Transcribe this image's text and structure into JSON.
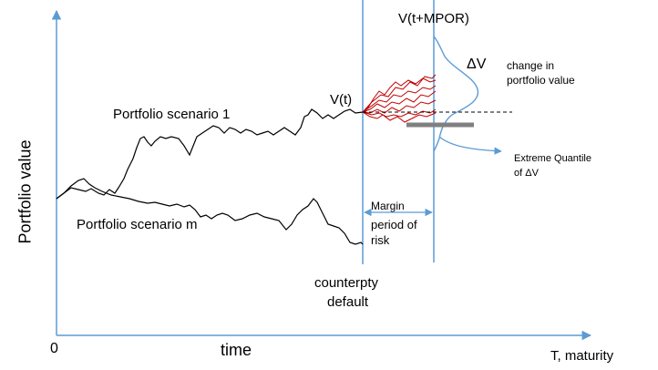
{
  "labels": {
    "y_axis": "Portfolio value",
    "x_origin": "0",
    "x_time": "time",
    "x_end": "T, maturity",
    "scenario_1": "Portfolio scenario 1",
    "scenario_m": "Portfolio scenario m",
    "v_t": "V(t)",
    "v_t_mpor": "V(t+MPOR)",
    "delta_v": "ΔV",
    "change_line1": "change in",
    "change_line2": "portfolio value",
    "margin_line1": "Margin",
    "margin_line2": "period of",
    "margin_line3": "risk",
    "default_line1": "counterpty",
    "default_line2": "default",
    "quantile_line1": "Extreme Quantile",
    "quantile_line2": "of ΔV"
  },
  "colors": {
    "axis": "#5b9bd5",
    "path": "#000000",
    "simulation": "#c00000",
    "distribution": "#5b9bd5",
    "quantile_bar": "#808080"
  }
}
